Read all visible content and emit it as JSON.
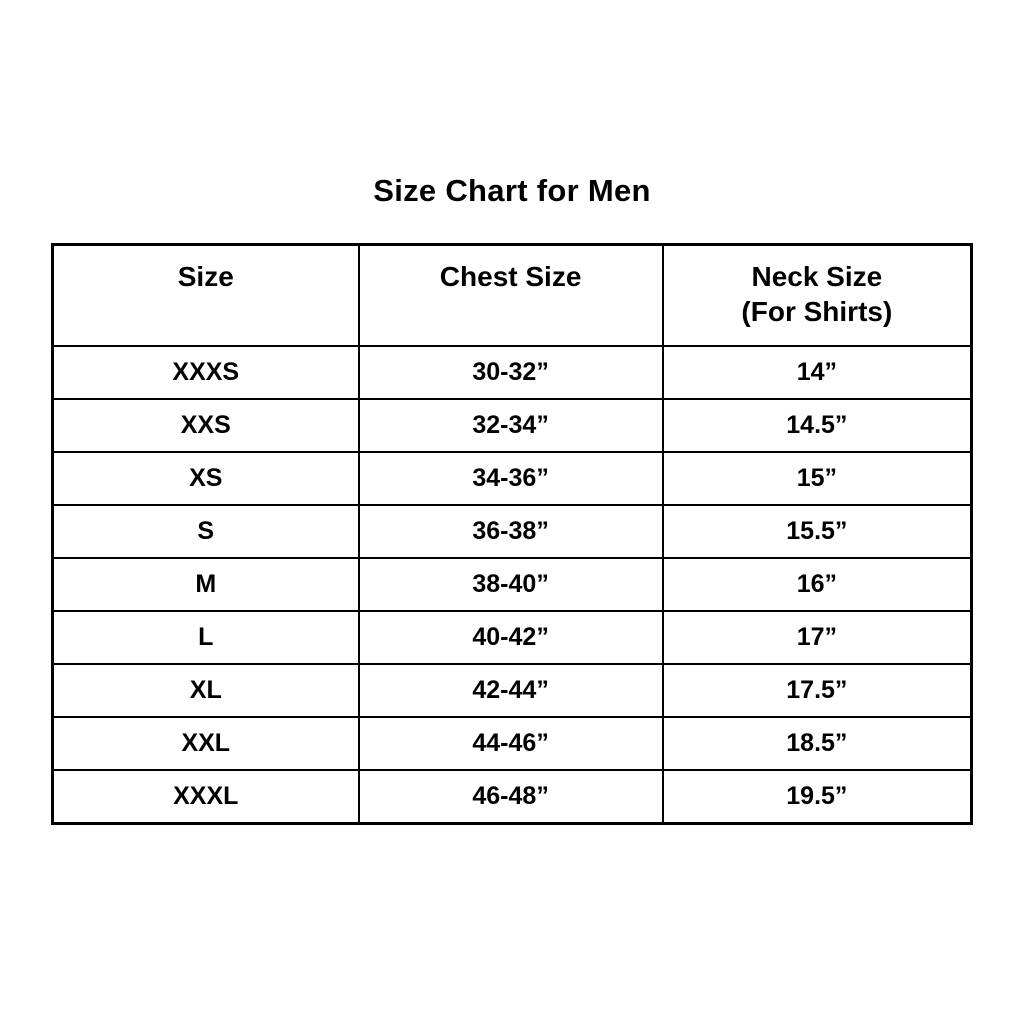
{
  "title": "Size Chart for Men",
  "table": {
    "headers": [
      {
        "line1": "Size",
        "line2": ""
      },
      {
        "line1": "Chest Size",
        "line2": ""
      },
      {
        "line1": "Neck Size",
        "line2": "(For Shirts)"
      }
    ],
    "rows": [
      {
        "size": "XXXS",
        "chest": "30-32”",
        "neck": "14”"
      },
      {
        "size": "XXS",
        "chest": "32-34”",
        "neck": "14.5”"
      },
      {
        "size": "XS",
        "chest": "34-36”",
        "neck": "15”"
      },
      {
        "size": "S",
        "chest": "36-38”",
        "neck": "15.5”"
      },
      {
        "size": "M",
        "chest": "38-40”",
        "neck": "16”"
      },
      {
        "size": "L",
        "chest": "40-42”",
        "neck": "17”"
      },
      {
        "size": "XL",
        "chest": "42-44”",
        "neck": "17.5”"
      },
      {
        "size": "XXL",
        "chest": "44-46”",
        "neck": "18.5”"
      },
      {
        "size": "XXXL",
        "chest": "46-48”",
        "neck": "19.5”"
      }
    ]
  },
  "colors": {
    "background": "#ffffff",
    "text": "#000000",
    "border": "#000000"
  },
  "chart_data": {
    "type": "table",
    "title": "Size Chart for Men",
    "columns": [
      "Size",
      "Chest Size",
      "Neck Size (For Shirts)"
    ],
    "rows": [
      [
        "XXXS",
        "30-32”",
        "14”"
      ],
      [
        "XXS",
        "32-34”",
        "14.5”"
      ],
      [
        "XS",
        "34-36”",
        "15”"
      ],
      [
        "S",
        "36-38”",
        "15.5”"
      ],
      [
        "M",
        "38-40”",
        "16”"
      ],
      [
        "L",
        "40-42”",
        "17”"
      ],
      [
        "XL",
        "42-44”",
        "17.5”"
      ],
      [
        "XXL",
        "44-46”",
        "18.5”"
      ],
      [
        "XXXL",
        "46-48”",
        "19.5”"
      ]
    ]
  }
}
